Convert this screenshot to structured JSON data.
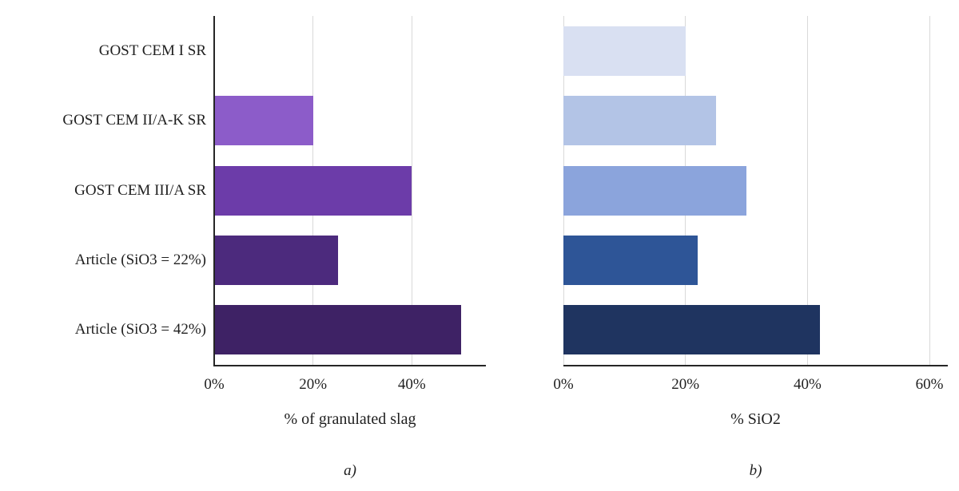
{
  "figure": {
    "background": "#ffffff",
    "text_color": "#1f1f1f",
    "axis_color": "#262626",
    "gridline_color": "#d9d9d9"
  },
  "chart_data": [
    {
      "type": "bar",
      "orientation": "horizontal",
      "caption": "a)",
      "xlabel": "% of granulated slag",
      "categories": [
        "GOST CEM I SR",
        "GOST CEM II/A-K SR",
        "GOST CEM III/A SR",
        "Article (SiO3 = 22%)",
        "Article (SiO3 = 42%)"
      ],
      "values": [
        0,
        20,
        40,
        25,
        50
      ],
      "bar_colors": [
        "#a98bd8",
        "#8c5cc9",
        "#6c3ca9",
        "#4c2a7d",
        "#3e2265"
      ],
      "xticks": [
        {
          "value": 0,
          "label": "0%"
        },
        {
          "value": 20,
          "label": "20%"
        },
        {
          "value": 40,
          "label": "40%"
        }
      ],
      "xlim": [
        0,
        55
      ],
      "grid": true,
      "legend": "none",
      "show_category_labels": true
    },
    {
      "type": "bar",
      "orientation": "horizontal",
      "caption": "b)",
      "xlabel": "% SiO2",
      "categories": [
        "GOST CEM I SR",
        "GOST CEM II/A-K SR",
        "GOST CEM III/A SR",
        "Article (SiO3 = 22%)",
        "Article (SiO3 = 42%)"
      ],
      "values": [
        20,
        25,
        30,
        22,
        42
      ],
      "bar_colors": [
        "#d9e0f2",
        "#b3c4e6",
        "#8ba4dc",
        "#2e5597",
        "#1f3460"
      ],
      "xticks": [
        {
          "value": 0,
          "label": "0%"
        },
        {
          "value": 20,
          "label": "20%"
        },
        {
          "value": 40,
          "label": "40%"
        },
        {
          "value": 60,
          "label": "60%"
        }
      ],
      "xlim": [
        0,
        63
      ],
      "grid": true,
      "legend": "none",
      "show_category_labels": false
    }
  ]
}
